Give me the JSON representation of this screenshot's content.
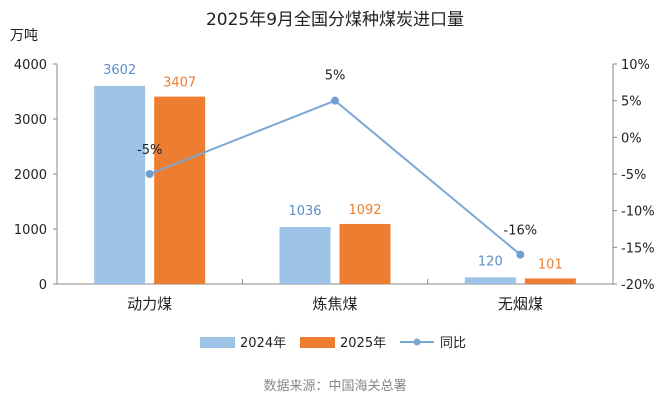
{
  "chart_data": {
    "type": "bar",
    "title": "2025年9月全国分煤种煤炭进口量",
    "ylabel": "万吨",
    "categories": [
      "动力煤",
      "炼焦煤",
      "无烟煤"
    ],
    "series": [
      {
        "name": "2024年",
        "values": [
          3602,
          1036,
          120
        ],
        "color": "#9dc3e6"
      },
      {
        "name": "2025年",
        "values": [
          3407,
          1092,
          101
        ],
        "color": "#ed7d31"
      }
    ],
    "line_series": {
      "name": "同比",
      "values": [
        -5,
        5,
        -16
      ],
      "labels": [
        "-5%",
        "5%",
        "-16%"
      ],
      "color": "#7ba7d4",
      "axis": "right"
    },
    "ylim": [
      0,
      4000
    ],
    "yticks": [
      "0",
      "1000",
      "2000",
      "3000",
      "4000"
    ],
    "y2lim": [
      -20,
      10
    ],
    "y2ticks": [
      "-20%",
      "-15%",
      "-10%",
      "-5%",
      "0%",
      "5%",
      "10%"
    ],
    "grid": false,
    "legend": "bottom",
    "source": "数据来源：中国海关总署"
  }
}
